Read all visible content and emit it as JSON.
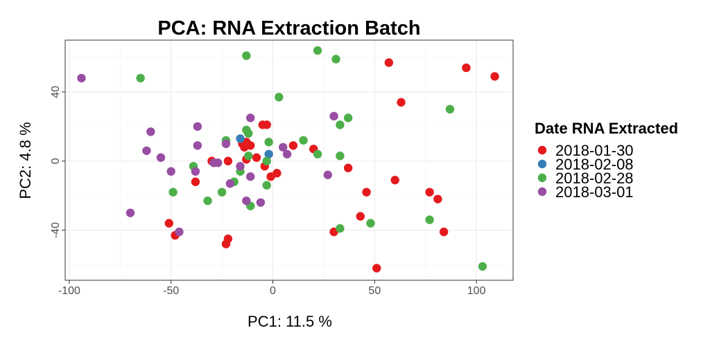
{
  "chart_data": {
    "type": "scatter",
    "title": "PCA: RNA Extraction Batch",
    "xlabel": "PC1: 11.5 %",
    "ylabel": "PC2: 4.8 %",
    "xlim": [
      -102,
      118
    ],
    "ylim": [
      -69,
      70
    ],
    "xticks": [
      -100,
      -50,
      0,
      50,
      100
    ],
    "xtick_labels": [
      "-100",
      "-50",
      "0",
      "50",
      "100"
    ],
    "yticks": [
      -40,
      0,
      40
    ],
    "ytick_labels": [
      "-40",
      "0",
      "40"
    ],
    "grid": true,
    "legend": {
      "title": "Date RNA Extracted",
      "position": "right"
    },
    "series": [
      {
        "name": "2018-01-30",
        "color": "#e41a1c",
        "points": [
          [
            57,
            57
          ],
          [
            95,
            54
          ],
          [
            109,
            49
          ],
          [
            63,
            34
          ],
          [
            -5,
            21
          ],
          [
            -3,
            21
          ],
          [
            10,
            9
          ],
          [
            -11,
            9
          ],
          [
            -13,
            11
          ],
          [
            -15,
            10
          ],
          [
            -14,
            8
          ],
          [
            20,
            7
          ],
          [
            -8,
            2
          ],
          [
            -13,
            1
          ],
          [
            -30,
            0
          ],
          [
            -22,
            0
          ],
          [
            -4,
            -3
          ],
          [
            -1,
            -9
          ],
          [
            2,
            -7
          ],
          [
            37,
            -4
          ],
          [
            -38,
            -12
          ],
          [
            60,
            -11
          ],
          [
            46,
            -18
          ],
          [
            77,
            -18
          ],
          [
            81,
            -22
          ],
          [
            43,
            -32
          ],
          [
            -51,
            -36
          ],
          [
            -48,
            -43
          ],
          [
            -22,
            -45
          ],
          [
            -23,
            -48
          ],
          [
            30,
            -41
          ],
          [
            84,
            -41
          ],
          [
            51,
            -62
          ]
        ]
      },
      {
        "name": "2018-02-08",
        "color": "#377eb8",
        "points": [
          [
            -16,
            13
          ],
          [
            -2,
            4
          ]
        ]
      },
      {
        "name": "2018-02-28",
        "color": "#4daf4a",
        "points": [
          [
            22,
            64
          ],
          [
            -13,
            61
          ],
          [
            31,
            59
          ],
          [
            -65,
            48
          ],
          [
            3,
            37
          ],
          [
            87,
            30
          ],
          [
            37,
            25
          ],
          [
            33,
            21
          ],
          [
            -13,
            18
          ],
          [
            -12,
            16
          ],
          [
            -23,
            12
          ],
          [
            -2,
            11
          ],
          [
            15,
            12
          ],
          [
            -12,
            3
          ],
          [
            22,
            4
          ],
          [
            33,
            3
          ],
          [
            -39,
            -3
          ],
          [
            -16,
            -6
          ],
          [
            -3,
            0
          ],
          [
            -19,
            -12
          ],
          [
            -25,
            -18
          ],
          [
            -49,
            -18
          ],
          [
            -3,
            -14
          ],
          [
            -32,
            -23
          ],
          [
            -11,
            -26
          ],
          [
            33,
            -39
          ],
          [
            48,
            -36
          ],
          [
            77,
            -34
          ],
          [
            103,
            -61
          ]
        ]
      },
      {
        "name": "2018-03-01",
        "color": "#984ea3",
        "points": [
          [
            -94,
            48
          ],
          [
            -11,
            25
          ],
          [
            30,
            26
          ],
          [
            -37,
            20
          ],
          [
            -60,
            17
          ],
          [
            -37,
            9
          ],
          [
            -23,
            10
          ],
          [
            5,
            8
          ],
          [
            -62,
            6
          ],
          [
            -55,
            2
          ],
          [
            -27,
            -1
          ],
          [
            -29,
            -1
          ],
          [
            7,
            4
          ],
          [
            -16,
            -3
          ],
          [
            -38,
            -6
          ],
          [
            -50,
            -6
          ],
          [
            -21,
            -13
          ],
          [
            -11,
            -9
          ],
          [
            27,
            -8
          ],
          [
            -13,
            -23
          ],
          [
            -6,
            -24
          ],
          [
            -70,
            -30
          ],
          [
            -46,
            -41
          ]
        ]
      }
    ]
  }
}
